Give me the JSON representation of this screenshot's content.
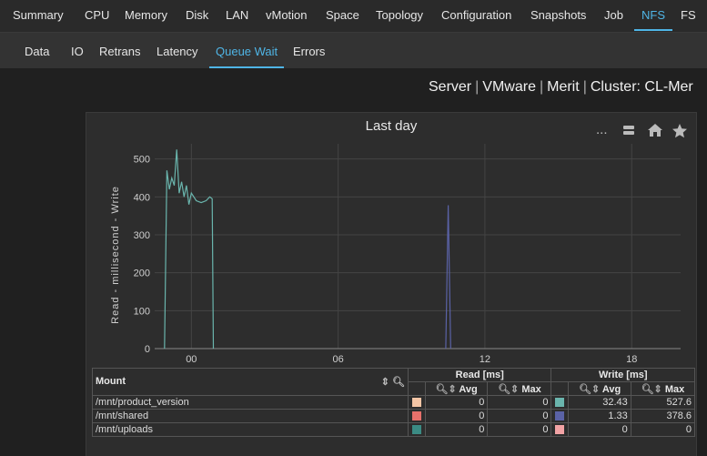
{
  "top_tabs": [
    "Summary",
    "CPU",
    "Memory",
    "Disk",
    "LAN",
    "vMotion",
    "Space",
    "Topology",
    "Configuration",
    "Snapshots",
    "Job",
    "NFS",
    "FS"
  ],
  "active_top_tab": "NFS",
  "sub_tabs": [
    "Data",
    "IO",
    "Retrans",
    "Latency",
    "Queue Wait",
    "Errors"
  ],
  "active_sub_tab": "Queue Wait",
  "breadcrumb": [
    "Server",
    "VMware",
    "Merit",
    "Cluster: CL-Mer"
  ],
  "toolbar": {
    "menu_label": "...",
    "icons": [
      "menu-dots",
      "table-icon",
      "home-icon",
      "star-icon"
    ]
  },
  "chart_data": {
    "type": "line",
    "title": "Last day",
    "ylabel": "Read  -  millisecond  -  Write",
    "ylim": [
      0,
      540
    ],
    "yticks": [
      0,
      100,
      200,
      300,
      400,
      500
    ],
    "xlim": [
      -1.5,
      20
    ],
    "xticks": [
      {
        "value": 0,
        "label": "00"
      },
      {
        "value": 6,
        "label": "06"
      },
      {
        "value": 12,
        "label": "12"
      },
      {
        "value": 18,
        "label": "18"
      }
    ],
    "grid": true,
    "series": [
      {
        "name": "/mnt/product_version",
        "direction": "Write",
        "color": "#6ab5ad",
        "points": [
          [
            -1.1,
            0
          ],
          [
            -1.0,
            470
          ],
          [
            -0.9,
            420
          ],
          [
            -0.8,
            450
          ],
          [
            -0.7,
            430
          ],
          [
            -0.6,
            525
          ],
          [
            -0.5,
            410
          ],
          [
            -0.4,
            440
          ],
          [
            -0.3,
            400
          ],
          [
            -0.2,
            430
          ],
          [
            -0.1,
            380
          ],
          [
            0,
            410
          ],
          [
            0.2,
            390
          ],
          [
            0.4,
            385
          ],
          [
            0.6,
            390
          ],
          [
            0.75,
            400
          ],
          [
            0.85,
            395
          ],
          [
            0.9,
            0
          ]
        ]
      },
      {
        "name": "/mnt/shared",
        "direction": "Write",
        "color": "#5a62a6",
        "points": [
          [
            10.4,
            0
          ],
          [
            10.5,
            378
          ],
          [
            10.6,
            0
          ]
        ]
      }
    ]
  },
  "legend_table": {
    "col_mount": "Mount",
    "group_read": "Read [ms]",
    "group_write": "Write [ms]",
    "col_avg": "Avg",
    "col_max": "Max",
    "rows": [
      {
        "mount": "/mnt/product_version",
        "read_color": "#f4c6a6",
        "read_avg": "0",
        "read_max": "0",
        "write_color": "#6ab5ad",
        "write_avg": "32.43",
        "write_max": "527.6"
      },
      {
        "mount": "/mnt/shared",
        "read_color": "#e8716b",
        "read_avg": "0",
        "read_max": "0",
        "write_color": "#5a62a6",
        "write_avg": "1.33",
        "write_max": "378.6"
      },
      {
        "mount": "/mnt/uploads",
        "read_color": "#3b8b84",
        "read_avg": "0",
        "read_max": "0",
        "write_color": "#f2a3a5",
        "write_avg": "0",
        "write_max": "0"
      }
    ]
  }
}
